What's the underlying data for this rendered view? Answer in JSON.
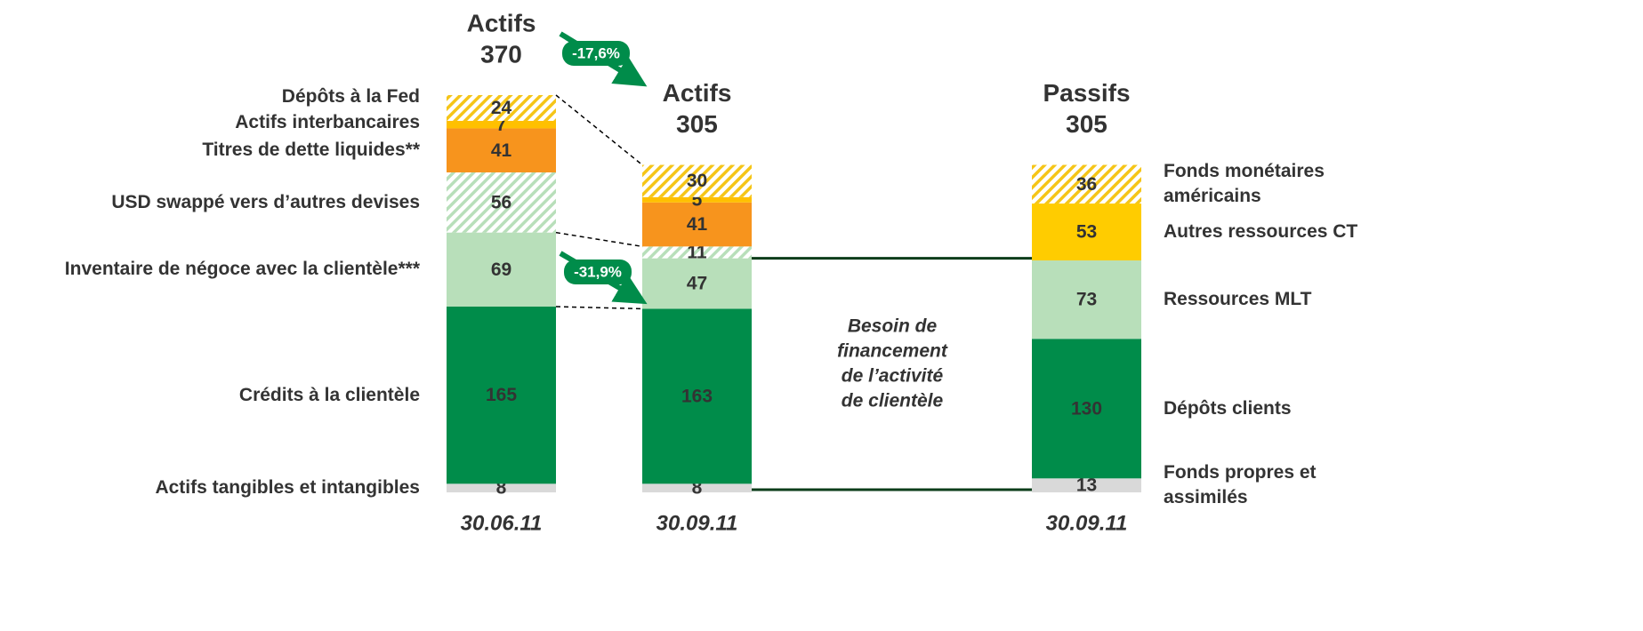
{
  "chart_data": [
    {
      "type": "stacked_bar",
      "categories": [
        "30.06.11",
        "30.09.11"
      ],
      "column_titles": [
        "Actifs",
        "Actifs"
      ],
      "totals": [
        370,
        305
      ],
      "label_side": "left",
      "series": [
        {
          "name": "Actifs tangibles et intangibles",
          "color": "#d9d9d9",
          "hatch": false,
          "values": [
            8,
            8
          ]
        },
        {
          "name": "Crédits à la clientèle",
          "color": "#008c4a",
          "hatch": false,
          "values": [
            165,
            163
          ]
        },
        {
          "name": "Inventaire de négoce avec la clientèle***",
          "color": "#b8dfba",
          "hatch": false,
          "values": [
            69,
            47
          ]
        },
        {
          "name": "USD swappé vers d’autres devises",
          "color": "#b8dfba",
          "hatch": true,
          "values": [
            56,
            11
          ]
        },
        {
          "name": "Titres de dette liquides**",
          "color": "#f7941d",
          "hatch": false,
          "values": [
            41,
            41
          ]
        },
        {
          "name": "Actifs interbancaires",
          "color": "#ffc000",
          "hatch": false,
          "values": [
            7,
            5
          ]
        },
        {
          "name": "Dépôts à la Fed",
          "color": "#f5c518",
          "hatch": true,
          "values": [
            24,
            30
          ]
        }
      ],
      "annotations": [
        "-17,6%",
        "-31,9%"
      ]
    },
    {
      "type": "stacked_bar",
      "categories": [
        "30.09.11"
      ],
      "column_titles": [
        "Passifs"
      ],
      "totals": [
        305
      ],
      "label_side": "right",
      "series": [
        {
          "name": "Fonds propres et assimilés",
          "color": "#d9d9d9",
          "hatch": false,
          "values": [
            13
          ]
        },
        {
          "name": "Dépôts clients",
          "color": "#008c4a",
          "hatch": false,
          "values": [
            130
          ]
        },
        {
          "name": "Ressources MLT",
          "color": "#b8dfba",
          "hatch": false,
          "values": [
            73
          ]
        },
        {
          "name": "Autres ressources CT",
          "color": "#ffcc00",
          "hatch": false,
          "values": [
            53
          ]
        },
        {
          "name": "Fonds monétaires américains",
          "color": "#f5c518",
          "hatch": true,
          "values": [
            36
          ]
        }
      ],
      "annotations": [
        [
          "Besoin de",
          "financement",
          "de l’activité",
          "de clientèle"
        ]
      ]
    }
  ]
}
